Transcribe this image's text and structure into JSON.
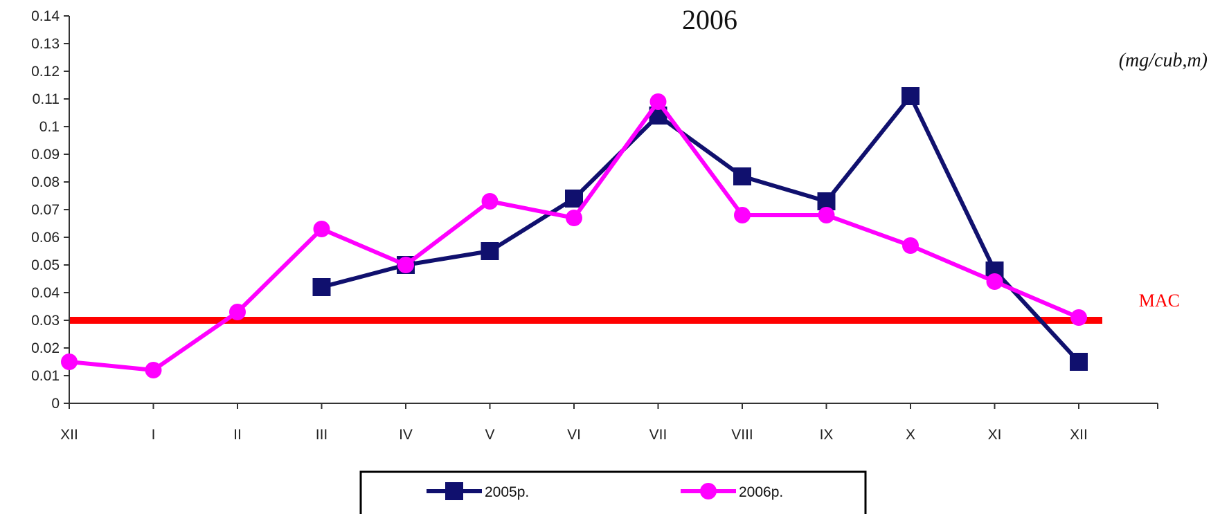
{
  "chart_data": {
    "type": "line",
    "title": "2006",
    "unit_label": "(mg/cub,m)",
    "categories": [
      "XII",
      "I",
      "II",
      "III",
      "IV",
      "V",
      "VI",
      "VII",
      "VIII",
      "IX",
      "X",
      "XI",
      "XII"
    ],
    "ylim": [
      0,
      0.14
    ],
    "yticks": [
      "0",
      "0.01",
      "0.02",
      "0.03",
      "0.04",
      "0.05",
      "0.06",
      "0.07",
      "0.08",
      "0.09",
      "0.1",
      "0.11",
      "0.12",
      "0.13",
      "0.14"
    ],
    "grid": false,
    "legend_position": "bottom",
    "series": [
      {
        "name": "2005р.",
        "color": "#10106e",
        "marker": "square",
        "values": [
          null,
          null,
          null,
          0.042,
          0.05,
          0.055,
          0.074,
          0.104,
          0.082,
          0.073,
          0.111,
          0.048,
          0.015
        ]
      },
      {
        "name": "2006р.",
        "color": "#ff00ff",
        "marker": "circle",
        "values": [
          0.015,
          0.012,
          0.033,
          0.063,
          0.05,
          0.073,
          0.067,
          0.109,
          0.068,
          0.068,
          0.057,
          0.044,
          0.031
        ]
      }
    ],
    "reference_line": {
      "label": "MAC",
      "value": 0.03,
      "color": "#ff0000"
    }
  }
}
